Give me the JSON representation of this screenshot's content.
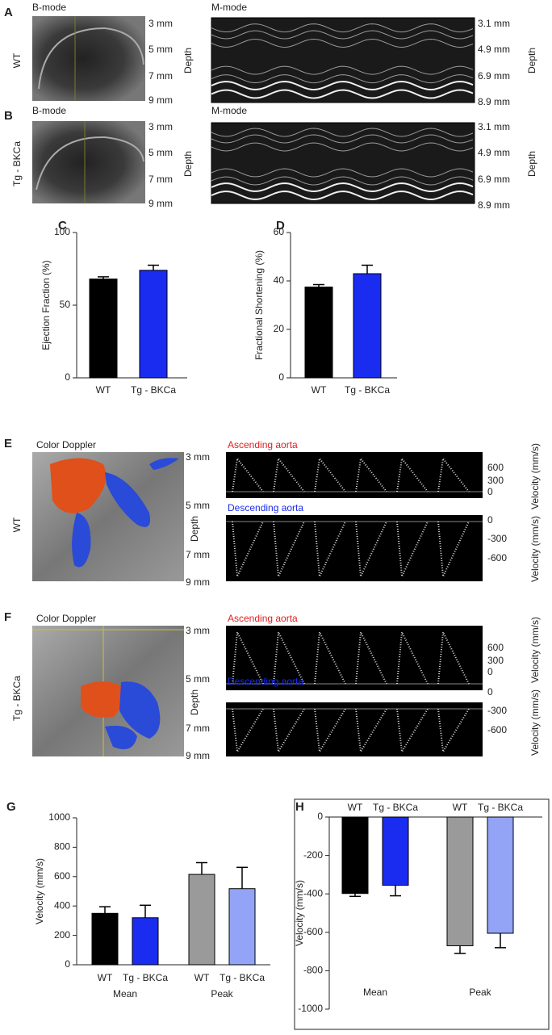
{
  "panels": {
    "A": {
      "letter": "A",
      "row_label": "WT",
      "bmode_title": "B-mode",
      "bmode_depths": [
        "3 mm",
        "5 mm",
        "7 mm",
        "9 mm"
      ],
      "bmode_depth_label": "Depth",
      "mmode_title": "M-mode",
      "mmode_depths": [
        "3.1 mm",
        "4.9 mm",
        "6.9 mm",
        "8.9 mm"
      ],
      "mmode_depth_label": "Depth"
    },
    "B": {
      "letter": "B",
      "row_label": "Tg - BKCa",
      "bmode_title": "B-mode",
      "bmode_depths": [
        "3 mm",
        "5 mm",
        "7 mm",
        "9 mm"
      ],
      "bmode_depth_label": "Depth",
      "mmode_title": "M-mode",
      "mmode_depths": [
        "3.1 mm",
        "4.9 mm",
        "6.9 mm",
        "8.9 mm"
      ],
      "mmode_depth_label": "Depth"
    },
    "E": {
      "letter": "E",
      "row_label": "WT",
      "doppler_title": "Color Doppler",
      "depths": [
        "3 mm",
        "5 mm",
        "7 mm",
        "9 mm"
      ],
      "depth_label": "Depth",
      "ascending_title": "Ascending aorta",
      "ascending_ticks": [
        "600",
        "300",
        "0"
      ],
      "descending_title": "Descending aorta",
      "descending_ticks": [
        "0",
        "-300",
        "-600"
      ],
      "velocity_label": "Velocity (mm/s)"
    },
    "F": {
      "letter": "F",
      "row_label": "Tg - BKCa",
      "doppler_title": "Color Doppler",
      "depths": [
        "3 mm",
        "5 mm",
        "7 mm",
        "9 mm"
      ],
      "depth_label": "Depth",
      "ascending_title": "Ascending aorta",
      "ascending_ticks": [
        "600",
        "300",
        "0"
      ],
      "descending_title": "Descending aorta",
      "descending_ticks": [
        "0",
        "-300",
        "-600"
      ],
      "velocity_label": "Velocity (mm/s)"
    }
  },
  "chart_data": [
    {
      "type": "bar",
      "panel_label": "C",
      "ylabel": "Ejection Fraction (%)",
      "categories": [
        "WT",
        "Tg - BKCa"
      ],
      "values": [
        68,
        74
      ],
      "errors": [
        1.5,
        3.5
      ],
      "colors": [
        "#000000",
        "#1a2cf0"
      ],
      "ylim": [
        0,
        100
      ],
      "yticks": [
        0,
        50,
        100
      ]
    },
    {
      "type": "bar",
      "panel_label": "D",
      "ylabel": "Fractional Shortening (%)",
      "categories": [
        "WT",
        "Tg - BKCa"
      ],
      "values": [
        37.5,
        43
      ],
      "errors": [
        1,
        3.5
      ],
      "colors": [
        "#000000",
        "#1a2cf0"
      ],
      "ylim": [
        0,
        60
      ],
      "yticks": [
        0,
        20,
        40,
        60
      ]
    },
    {
      "type": "bar",
      "panel_label": "G",
      "ylabel": "Velocity (mm/s)",
      "categories": [
        "WT",
        "Tg - BKCa",
        "WT",
        "Tg - BKCa"
      ],
      "groups": [
        "Mean",
        "Peak"
      ],
      "values": [
        350,
        320,
        615,
        518
      ],
      "errors": [
        45,
        85,
        80,
        145
      ],
      "colors": [
        "#000000",
        "#1a2cf0",
        "#9a9a9a",
        "#93a3f5"
      ],
      "ylim": [
        0,
        1000
      ],
      "yticks": [
        0,
        200,
        400,
        600,
        800,
        1000
      ]
    },
    {
      "type": "bar",
      "panel_label": "H",
      "ylabel": "Velocity (mm/s)",
      "categories": [
        "WT",
        "Tg - BKCa",
        "WT",
        "Tg - BKCa"
      ],
      "groups": [
        "Mean",
        "Peak"
      ],
      "values": [
        -398,
        -355,
        -670,
        -605
      ],
      "errors": [
        15,
        55,
        40,
        75
      ],
      "colors": [
        "#000000",
        "#1a2cf0",
        "#9a9a9a",
        "#93a3f5"
      ],
      "ylim": [
        -1000,
        0
      ],
      "yticks": [
        -1000,
        -800,
        -600,
        -400,
        -200,
        0
      ]
    }
  ]
}
